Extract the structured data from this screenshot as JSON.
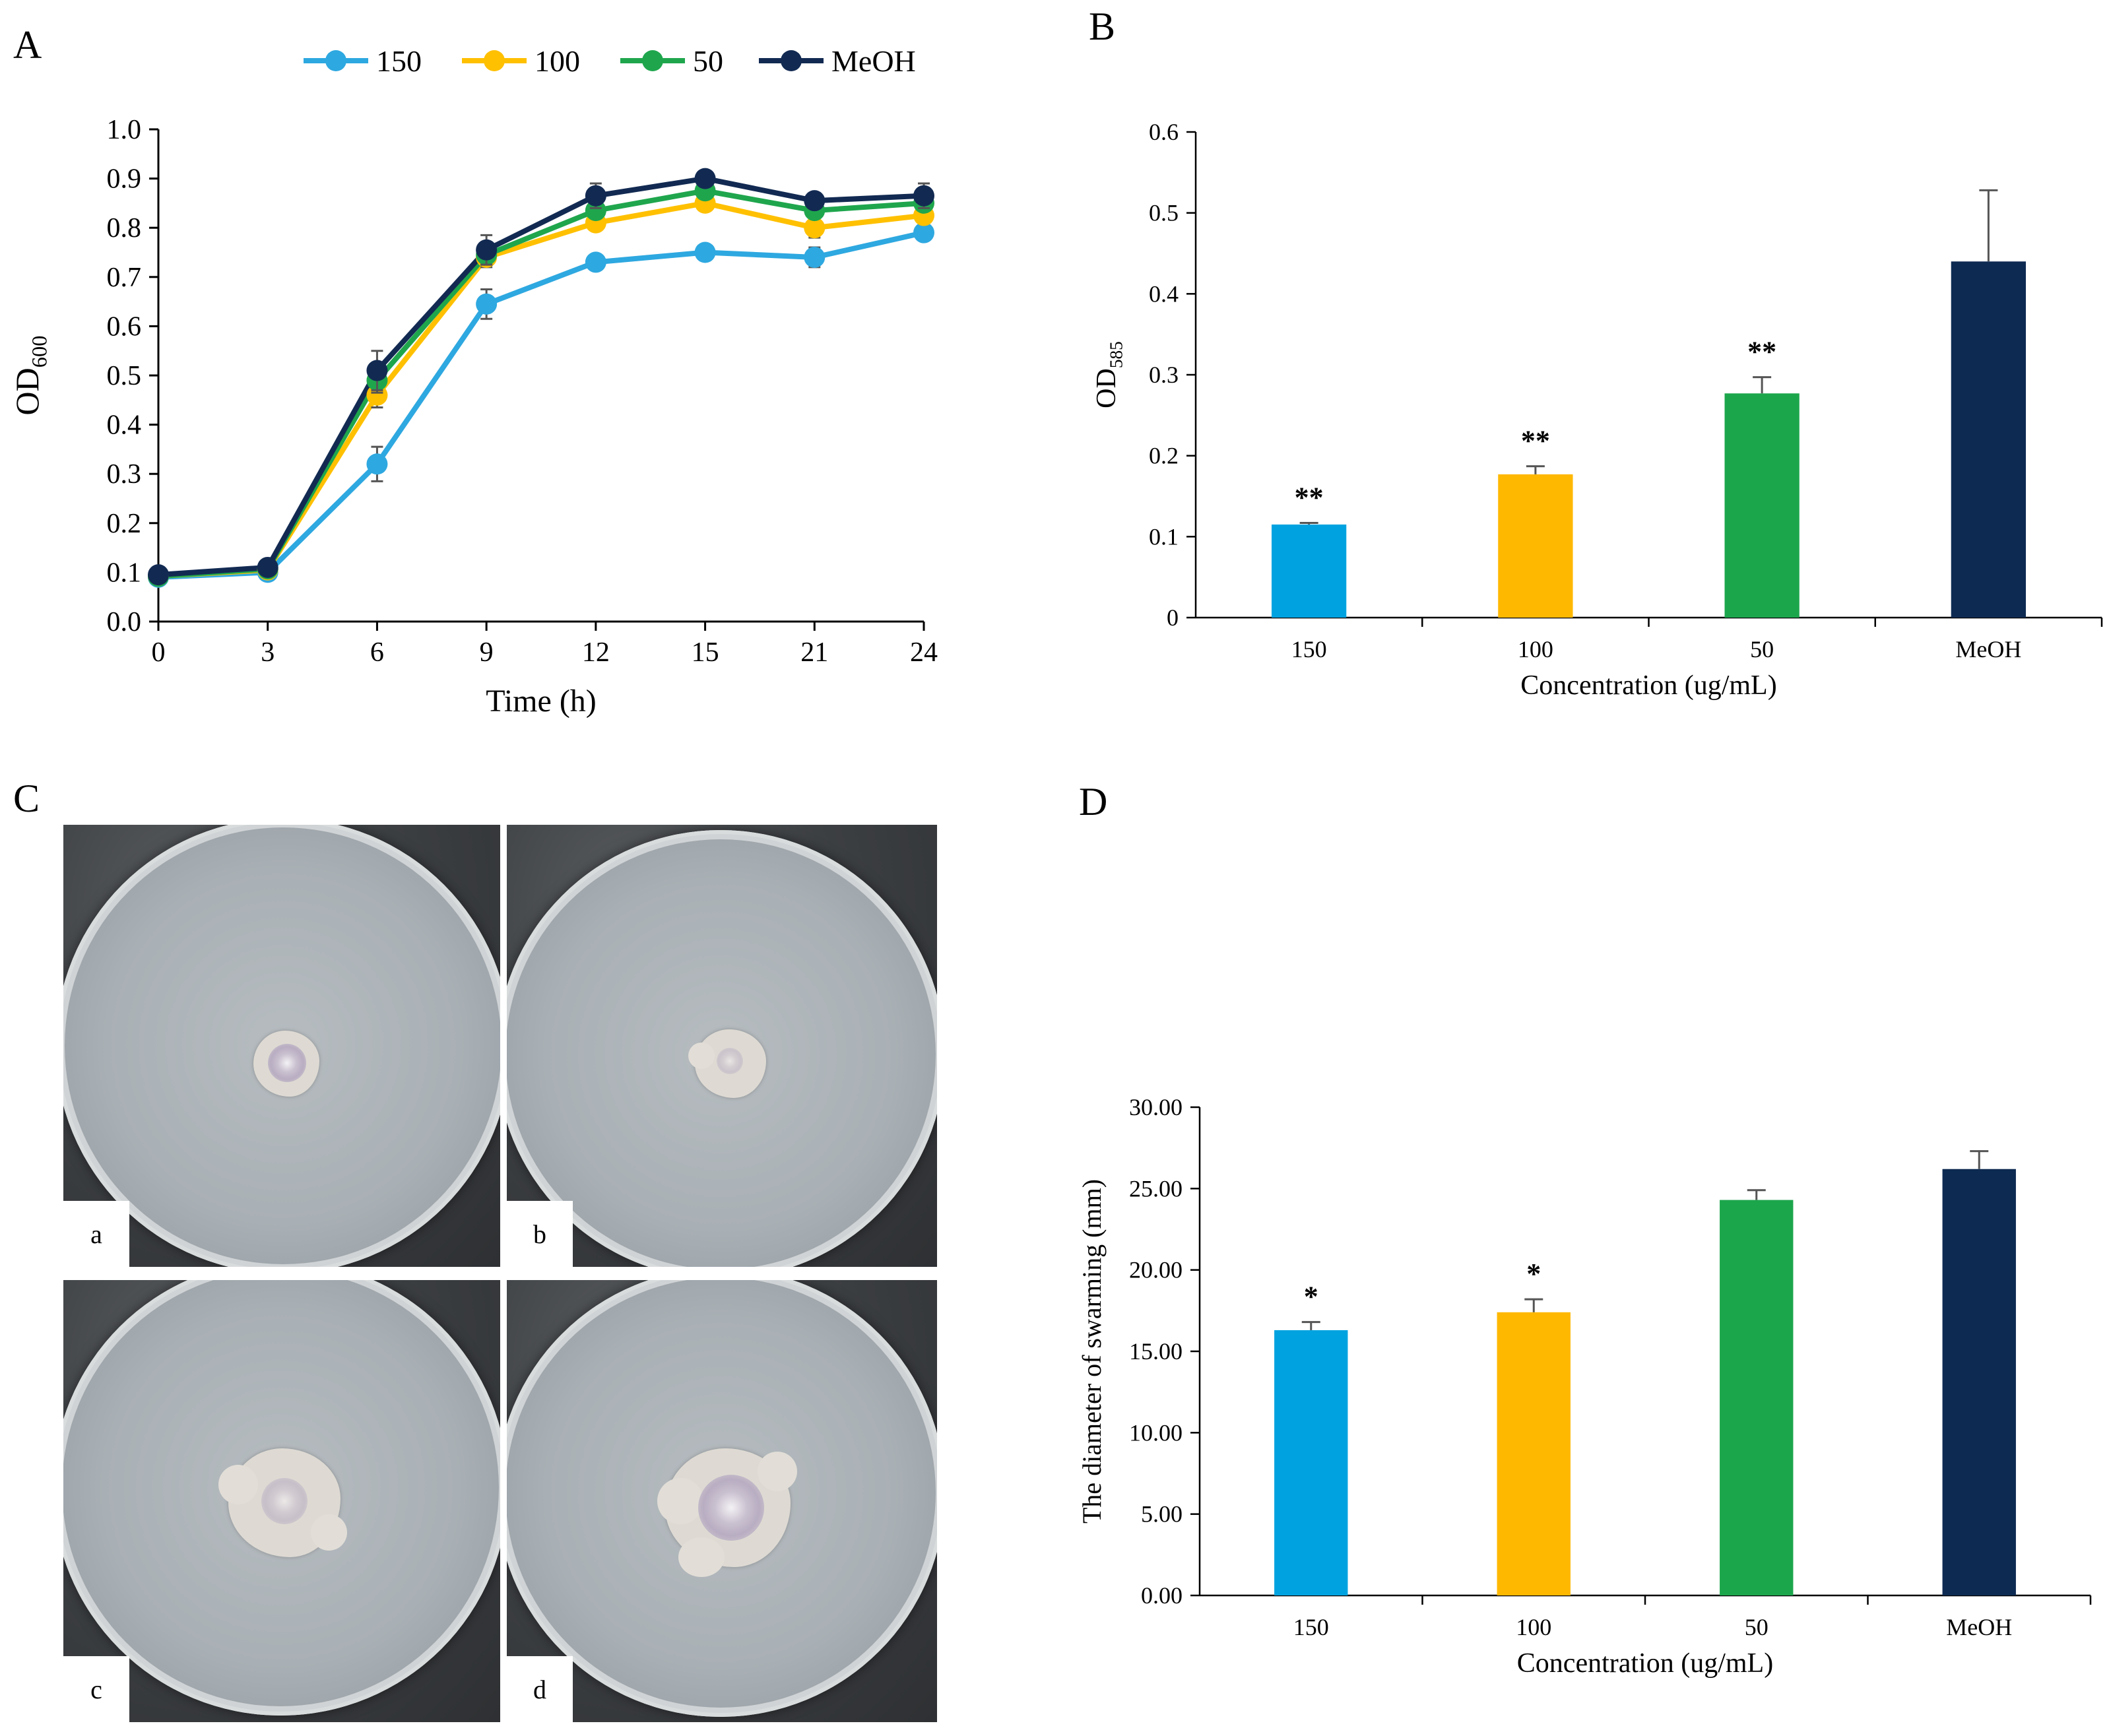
{
  "panel_letters": {
    "a": "A",
    "b": "B",
    "c": "C",
    "d": "D"
  },
  "chart_data": [
    {
      "id": "A",
      "type": "line",
      "title": "",
      "xlabel": "Time (h)",
      "ylabel_main": "OD",
      "ylabel_sub": "600",
      "categories": [
        "0",
        "3",
        "6",
        "9",
        "12",
        "15",
        "21",
        "24"
      ],
      "ylim": [
        0,
        1.0
      ],
      "yticks": [
        "0.0",
        "0.1",
        "0.2",
        "0.3",
        "0.4",
        "0.5",
        "0.6",
        "0.7",
        "0.8",
        "0.9",
        "1.0"
      ],
      "legend_position": "top",
      "series": [
        {
          "name": "150",
          "color": "#2ea8e0",
          "values": [
            0.09,
            0.1,
            0.32,
            0.645,
            0.73,
            0.75,
            0.74,
            0.79
          ],
          "errors": [
            0.01,
            0.01,
            0.035,
            0.03,
            0.01,
            0.01,
            0.02,
            0.01
          ]
        },
        {
          "name": "100",
          "color": "#ffc000",
          "values": [
            0.092,
            0.105,
            0.46,
            0.74,
            0.81,
            0.85,
            0.8,
            0.825
          ],
          "errors": [
            0.005,
            0.01,
            0.025,
            0.02,
            0.015,
            0.015,
            0.02,
            0.015
          ]
        },
        {
          "name": "50",
          "color": "#1fa64d",
          "values": [
            0.092,
            0.107,
            0.49,
            0.745,
            0.835,
            0.875,
            0.835,
            0.85
          ],
          "errors": [
            0.005,
            0.01,
            0.025,
            0.02,
            0.015,
            0.015,
            0.015,
            0.015
          ]
        },
        {
          "name": "MeOH",
          "color": "#122a52",
          "values": [
            0.095,
            0.11,
            0.51,
            0.755,
            0.865,
            0.9,
            0.855,
            0.865
          ],
          "errors": [
            0.005,
            0.01,
            0.04,
            0.03,
            0.025,
            0.01,
            0.015,
            0.025
          ]
        }
      ]
    },
    {
      "id": "B",
      "type": "bar",
      "title": "",
      "xlabel": "Concentration (ug/mL)",
      "ylabel_main": "OD",
      "ylabel_sub": "585",
      "categories": [
        "150",
        "100",
        "50",
        "MeOH"
      ],
      "values": [
        0.115,
        0.177,
        0.277,
        0.44
      ],
      "errors": [
        0.002,
        0.01,
        0.02,
        0.088
      ],
      "significance": [
        "**",
        "**",
        "**",
        ""
      ],
      "colors": [
        "#00a3e0",
        "#ffb800",
        "#1ca64c",
        "#0d2a52"
      ],
      "ylim": [
        0,
        0.6
      ],
      "yticks": [
        "0",
        "0.1",
        "0.2",
        "0.3",
        "0.4",
        "0.5",
        "0.6"
      ]
    },
    {
      "id": "D",
      "type": "bar",
      "title": "",
      "xlabel": "Concentration (ug/mL)",
      "ylabel": "The diameter of swarming (mm)",
      "categories": [
        "150",
        "100",
        "50",
        "MeOH"
      ],
      "values": [
        16.3,
        17.4,
        24.3,
        26.2
      ],
      "errors": [
        0.5,
        0.8,
        0.6,
        1.1
      ],
      "significance": [
        "*",
        "*",
        "",
        ""
      ],
      "colors": [
        "#00a3e0",
        "#ffb800",
        "#1ca64c",
        "#0d2a52"
      ],
      "ylim": [
        0,
        30
      ],
      "yticks": [
        "0.00",
        "5.00",
        "10.00",
        "15.00",
        "20.00",
        "25.00",
        "30.00"
      ]
    }
  ],
  "plates": [
    {
      "label": "a",
      "colony_size": "small",
      "colony_hue": "purple"
    },
    {
      "label": "b",
      "colony_size": "small",
      "colony_hue": "cream"
    },
    {
      "label": "c",
      "colony_size": "large",
      "colony_hue": "cream"
    },
    {
      "label": "d",
      "colony_size": "large",
      "colony_hue": "purple"
    }
  ]
}
